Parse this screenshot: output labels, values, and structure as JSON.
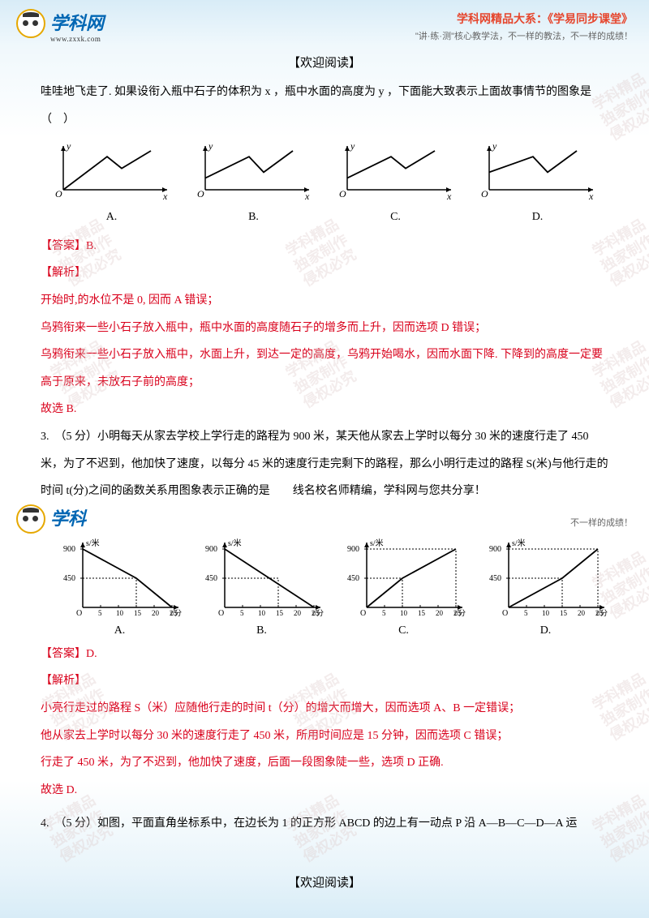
{
  "header": {
    "logo_cn": "学科网",
    "logo_url": "www.zxxk.com",
    "series": "学科网精品大系：《学易同步课堂》",
    "tagline": "\"讲·练·测\"核心教学法，不一样的教法，不一样的成绩！"
  },
  "title": "【欢迎阅读】",
  "q2": {
    "intro": "哇哇地飞走了. 如果设衔入瓶中石子的体积为 x ，瓶中水面的高度为 y ，下面能大致表示上面故事情节的图象是（　）",
    "charts": [
      {
        "label": "A.",
        "startY": 0,
        "dip": false
      },
      {
        "label": "B.",
        "startY": 0.3,
        "dip": true
      },
      {
        "label": "C.",
        "startY": 0.3,
        "dip": false
      },
      {
        "label": "D.",
        "startY": 0.45,
        "dip": true
      }
    ],
    "answer": "【答案】B.",
    "analysis_label": "【解析】",
    "analysis": [
      "开始时,的水位不是 0, 因而 A 错误；",
      "乌鸦衔来一些小石子放入瓶中，瓶中水面的高度随石子的增多而上升，因而选项 D 错误；",
      "乌鸦衔来一些小石子放入瓶中，水面上升，到达一定的高度，乌鸦开始喝水，因而水面下降. 下降到的高度一定要高于原来，未放石子前的高度；",
      "故选 B."
    ]
  },
  "q3": {
    "stem": "3.　（5 分）小明每天从家去学校上学行走的路程为 900 米，某天他从家去上学时以每分 30 米的速度行走了 450 米，为了不迟到，他加快了速度，以每分 45 米的速度行走完剩下的路程，那么小明行走过的路程 S(米)与他行走的时间 t(分)之间的函数关系用图象表示正确的是　　线名校名师精编，学科网与您共分享！",
    "charts": [
      {
        "label": "A.",
        "type": "down",
        "breakX": 15,
        "breakY": 450,
        "sameSlope": false
      },
      {
        "label": "B.",
        "type": "down",
        "breakX": 15,
        "breakY": 450,
        "sameSlope": true
      },
      {
        "label": "C.",
        "type": "up",
        "breakX": 10,
        "breakY": 450
      },
      {
        "label": "D.",
        "type": "up",
        "breakX": 15,
        "breakY": 450
      }
    ],
    "axis": {
      "ylabel": "s/米",
      "xlabel": "t/分",
      "ymax": 900,
      "ymid": 450,
      "xticks": [
        5,
        10,
        15,
        20,
        25
      ]
    },
    "answer": "【答案】D.",
    "analysis_label": "【解析】",
    "analysis": [
      "小亮行走过的路程 S（米）应随他行走的时间 t（分）的增大而增大，因而选项 A、B 一定错误；",
      "他从家去上学时以每分 30 米的速度行走了 450 米，所用时间应是 15 分钟，因而选项 C 错误；",
      "行走了 450 米，为了不迟到，他加快了速度，后面一段图象陡一些，选项 D 正确.",
      "故选 D."
    ]
  },
  "q4": {
    "stem": "4.　（5 分）如图，平面直角坐标系中，在边长为 1 的正方形 ABCD 的边上有一动点 P 沿 A—B—C—D—A 运"
  },
  "bottom_title": "【欢迎阅读】",
  "watermarks": [
    "学科精品",
    "独家制作",
    "侵权必究"
  ]
}
